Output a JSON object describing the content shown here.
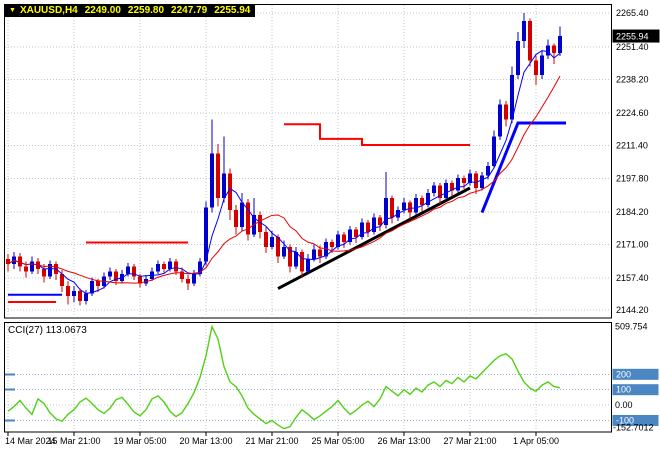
{
  "title_bar": {
    "dropdown_icon": "▼",
    "symbol": "XAUUSD,H4",
    "open": "2249.00",
    "high": "2259.80",
    "low": "2247.79",
    "close": "2255.94"
  },
  "colors": {
    "background": "#ffffff",
    "border": "#000000",
    "grid": "#c6c6c6",
    "up": "#0000cc",
    "down": "#d40000",
    "ma_fast": "#0000ff",
    "ma_slow": "#e60000",
    "trendline": "#000000",
    "cci_line": "#52d017",
    "level_line": "#8fb4d8",
    "level_badge": "#4a86c2",
    "price_badge_bg": "#000000",
    "title_bg": "#000000",
    "title_text": "#ffff00"
  },
  "chart_data": {
    "type": "candlestick",
    "symbol": "XAUUSD",
    "timeframe": "H4",
    "price_range": [
      2141,
      2269
    ],
    "y_ticks": [
      2265.4,
      2251.4,
      2238.2,
      2224.6,
      2211.4,
      2197.8,
      2184.2,
      2171.0,
      2157.4,
      2144.2
    ],
    "y_tick_labels": [
      "2265.40",
      "2251.40",
      "2238.20",
      "2224.60",
      "2211.40",
      "2197.80",
      "2184.20",
      "2171.00",
      "2157.40",
      "2144.20"
    ],
    "x_tick_indices": [
      0,
      11,
      22,
      33,
      44,
      55,
      66,
      77,
      88
    ],
    "x_tick_labels": [
      "14 Mar 2024",
      "15 Mar 21:00",
      "19 Mar 05:00",
      "20 Mar 13:00",
      "21 Mar 21:00",
      "25 Mar 05:00",
      "26 Mar 13:00",
      "27 Mar 21:00",
      "1 Apr 05:00"
    ],
    "current_price_label": "2255.94",
    "candles": [
      [
        2165,
        2167,
        2160,
        2163
      ],
      [
        2163,
        2168,
        2161,
        2166
      ],
      [
        2166,
        2167.5,
        2160,
        2162
      ],
      [
        2162,
        2164,
        2157.5,
        2160
      ],
      [
        2160,
        2166,
        2159,
        2164
      ],
      [
        2164,
        2165.5,
        2159,
        2161
      ],
      [
        2161,
        2163,
        2155.5,
        2158
      ],
      [
        2158,
        2164.5,
        2157,
        2163
      ],
      [
        2163,
        2164,
        2156.5,
        2159
      ],
      [
        2159,
        2160.5,
        2151.5,
        2154
      ],
      [
        2154,
        2156,
        2146.5,
        2150
      ],
      [
        2150,
        2154,
        2147.5,
        2152
      ],
      [
        2152,
        2153,
        2146,
        2148
      ],
      [
        2148,
        2152.5,
        2146.5,
        2151
      ],
      [
        2151,
        2157.5,
        2150,
        2156
      ],
      [
        2156,
        2157,
        2151.5,
        2154
      ],
      [
        2154,
        2159.5,
        2153,
        2158
      ],
      [
        2158,
        2161.5,
        2156.5,
        2160
      ],
      [
        2160,
        2161,
        2154.5,
        2156
      ],
      [
        2156,
        2160.5,
        2155,
        2159
      ],
      [
        2159,
        2163.5,
        2158,
        2162
      ],
      [
        2162,
        2163,
        2156.5,
        2158
      ],
      [
        2158,
        2159,
        2153.5,
        2155
      ],
      [
        2155,
        2158.5,
        2154,
        2157
      ],
      [
        2157,
        2161.5,
        2156,
        2160
      ],
      [
        2160,
        2164.5,
        2159,
        2163
      ],
      [
        2163,
        2164,
        2159.5,
        2161
      ],
      [
        2161,
        2165.5,
        2160,
        2164
      ],
      [
        2164,
        2165,
        2158.5,
        2160
      ],
      [
        2160,
        2161.5,
        2155.5,
        2157
      ],
      [
        2157,
        2158.5,
        2152.5,
        2155
      ],
      [
        2155,
        2160.5,
        2154,
        2159
      ],
      [
        2159,
        2165.5,
        2158,
        2164
      ],
      [
        2164,
        2188.5,
        2162.5,
        2186
      ],
      [
        2186,
        2222,
        2184,
        2208
      ],
      [
        2208,
        2212,
        2186.5,
        2190
      ],
      [
        2190,
        2215,
        2188,
        2200
      ],
      [
        2200,
        2202,
        2181,
        2185
      ],
      [
        2185,
        2187,
        2175,
        2178
      ],
      [
        2178,
        2192,
        2176.5,
        2188
      ],
      [
        2188,
        2189.5,
        2172.5,
        2175
      ],
      [
        2175,
        2190,
        2174,
        2183
      ],
      [
        2183,
        2184.5,
        2173.5,
        2176
      ],
      [
        2176,
        2178,
        2167.5,
        2170
      ],
      [
        2170,
        2176.5,
        2169,
        2174
      ],
      [
        2174,
        2175,
        2163.5,
        2166
      ],
      [
        2166,
        2172.5,
        2165,
        2170
      ],
      [
        2170,
        2171,
        2159.5,
        2162
      ],
      [
        2162,
        2170,
        2161,
        2168
      ],
      [
        2168,
        2169,
        2157.5,
        2160
      ],
      [
        2160,
        2167,
        2159,
        2165
      ],
      [
        2165,
        2171,
        2164,
        2169
      ],
      [
        2169,
        2170.5,
        2163.5,
        2166
      ],
      [
        2166,
        2173.5,
        2165,
        2172
      ],
      [
        2172,
        2173,
        2167.5,
        2170
      ],
      [
        2170,
        2176.5,
        2169,
        2175
      ],
      [
        2175,
        2176,
        2169.5,
        2172
      ],
      [
        2172,
        2178.5,
        2171,
        2177
      ],
      [
        2177,
        2178,
        2171.5,
        2174
      ],
      [
        2174,
        2181.5,
        2173,
        2180
      ],
      [
        2180,
        2181,
        2174,
        2176
      ],
      [
        2176,
        2183.5,
        2175,
        2182
      ],
      [
        2182,
        2183,
        2176.5,
        2179
      ],
      [
        2179,
        2200.5,
        2177.5,
        2190
      ],
      [
        2190,
        2191,
        2179.5,
        2182
      ],
      [
        2182,
        2186.5,
        2180.5,
        2185
      ],
      [
        2185,
        2190,
        2183.5,
        2188
      ],
      [
        2188,
        2189,
        2181.5,
        2184
      ],
      [
        2184,
        2191.5,
        2183,
        2190
      ],
      [
        2190,
        2191,
        2184.5,
        2187
      ],
      [
        2187,
        2193.5,
        2186,
        2192
      ],
      [
        2192,
        2196.5,
        2190.5,
        2195
      ],
      [
        2195,
        2196,
        2187.5,
        2190
      ],
      [
        2190,
        2197.5,
        2189,
        2196
      ],
      [
        2196,
        2197,
        2190.5,
        2193
      ],
      [
        2193,
        2199.5,
        2192,
        2198
      ],
      [
        2198,
        2199,
        2193.5,
        2196
      ],
      [
        2196,
        2201.5,
        2195,
        2200
      ],
      [
        2200,
        2201,
        2191.5,
        2194
      ],
      [
        2194,
        2200.5,
        2193,
        2199
      ],
      [
        2199,
        2204.5,
        2197.5,
        2203
      ],
      [
        2203,
        2217.5,
        2202,
        2215
      ],
      [
        2215,
        2230,
        2213.5,
        2228
      ],
      [
        2228,
        2229.5,
        2219,
        2222
      ],
      [
        2222,
        2243.5,
        2220.5,
        2240
      ],
      [
        2240,
        2257.5,
        2238.5,
        2254
      ],
      [
        2254,
        2265.4,
        2251,
        2262
      ],
      [
        2262,
        2263,
        2243.5,
        2246
      ],
      [
        2246,
        2248,
        2236,
        2240
      ],
      [
        2240,
        2250,
        2238.5,
        2248
      ],
      [
        2248,
        2254.5,
        2246.5,
        2252
      ],
      [
        2252,
        2253,
        2244.5,
        2249
      ],
      [
        2249,
        2259.8,
        2247.79,
        2255.94
      ]
    ],
    "indicators": {
      "ma_fast": {
        "type": "SMA",
        "period": 5
      },
      "ma_slow": {
        "type": "SMA",
        "period": 13
      }
    },
    "overlay_segments": [
      {
        "color": "#ff0000",
        "width": 2,
        "points": [
          [
            0,
            2147.5
          ],
          [
            8,
            2147.5
          ]
        ]
      },
      {
        "color": "#0000ff",
        "width": 2,
        "points": [
          [
            0,
            2150.5
          ],
          [
            9,
            2150.5
          ]
        ]
      },
      {
        "color": "#ff0000",
        "width": 2,
        "points": [
          [
            13,
            2171.8
          ],
          [
            30,
            2171.8
          ]
        ]
      },
      {
        "color": "#ff0000",
        "width": 2,
        "points": [
          [
            46,
            2220
          ],
          [
            52,
            2220
          ],
          [
            52,
            2214
          ],
          [
            59,
            2214
          ],
          [
            59,
            2211.5
          ],
          [
            77,
            2211.5
          ]
        ]
      },
      {
        "color": "#0000ff",
        "width": 3,
        "points": [
          [
            79,
            2184
          ],
          [
            85,
            2220.5
          ],
          [
            93,
            2220.5
          ]
        ]
      }
    ],
    "trendline": {
      "color": "#000000",
      "width": 3,
      "points": [
        [
          45,
          2153
        ],
        [
          77,
          2194
        ]
      ]
    },
    "cci": {
      "label": "CCI(27) 113.0673",
      "period": 27,
      "current": 113.0673,
      "range": [
        -175,
        540
      ],
      "levels": [
        200,
        100,
        -100
      ],
      "level_labels": [
        "200",
        "100",
        "-100"
      ],
      "zero_label": "0.00",
      "max_label": "509.754",
      "min_label": "-152.7012",
      "values": [
        -40,
        -10,
        30,
        -20,
        -60,
        40,
        10,
        -50,
        -90,
        -105,
        -60,
        -30,
        20,
        45,
        10,
        -30,
        -55,
        -20,
        35,
        50,
        5,
        -45,
        -70,
        -30,
        40,
        60,
        20,
        -40,
        -75,
        -50,
        10,
        80,
        180,
        320,
        509.754,
        430,
        250,
        150,
        120,
        60,
        -20,
        -60,
        -90,
        -120,
        -100,
        -130,
        -152.7012,
        -140,
        -80,
        -30,
        -60,
        -95,
        -70,
        -40,
        -10,
        30,
        -20,
        -60,
        -35,
        0,
        25,
        -10,
        40,
        120,
        90,
        60,
        100,
        70,
        110,
        85,
        130,
        150,
        120,
        160,
        140,
        180,
        150,
        190,
        170,
        210,
        250,
        290,
        320,
        333,
        300,
        220,
        150,
        110,
        90,
        130,
        150,
        120,
        113.0673
      ]
    }
  }
}
